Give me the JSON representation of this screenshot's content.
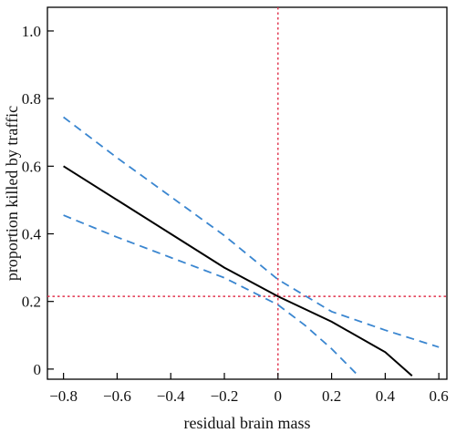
{
  "chart_data": {
    "type": "line",
    "xlabel": "residual brain mass",
    "ylabel": "proportion killed by traffic",
    "xlim": [
      -0.86,
      0.63
    ],
    "ylim": [
      -0.03,
      1.07
    ],
    "x_ticks": [
      -0.8,
      -0.6,
      -0.4,
      -0.2,
      0,
      0.2,
      0.4,
      0.6
    ],
    "x_tick_labels": [
      "−0.8",
      "−0.6",
      "−0.4",
      "−0.2",
      "0",
      "0.2",
      "0.4",
      "0.6"
    ],
    "y_ticks": [
      0,
      0.2,
      0.4,
      0.6,
      0.8,
      1.0
    ],
    "y_tick_labels": [
      "0",
      "0.2",
      "0.4",
      "0.6",
      "0.8",
      "1.0"
    ],
    "grid": false,
    "legend": "none",
    "series": [
      {
        "style": "solid",
        "color": "#000000",
        "x": [
          -0.8,
          -0.6,
          -0.4,
          -0.2,
          0.0,
          0.2,
          0.4,
          0.5
        ],
        "y": [
          0.6,
          0.5,
          0.4,
          0.3,
          0.215,
          0.14,
          0.05,
          -0.02
        ]
      },
      {
        "style": "dashed",
        "color": "#3a86d0",
        "x": [
          -0.8,
          -0.6,
          -0.4,
          -0.2,
          0.0,
          0.2,
          0.4,
          0.6
        ],
        "y": [
          0.745,
          0.625,
          0.51,
          0.395,
          0.265,
          0.17,
          0.115,
          0.065
        ]
      },
      {
        "style": "dashed",
        "color": "#3a86d0",
        "x": [
          -0.8,
          -0.6,
          -0.4,
          -0.2,
          0.0,
          0.1,
          0.2,
          0.3
        ],
        "y": [
          0.455,
          0.39,
          0.33,
          0.27,
          0.19,
          0.13,
          0.06,
          -0.02
        ]
      }
    ],
    "reference_lines": [
      {
        "orientation": "vertical",
        "value": 0.0,
        "color": "#e0304a",
        "style": "dotted"
      },
      {
        "orientation": "horizontal",
        "value": 0.215,
        "color": "#e0304a",
        "style": "dotted"
      }
    ]
  }
}
